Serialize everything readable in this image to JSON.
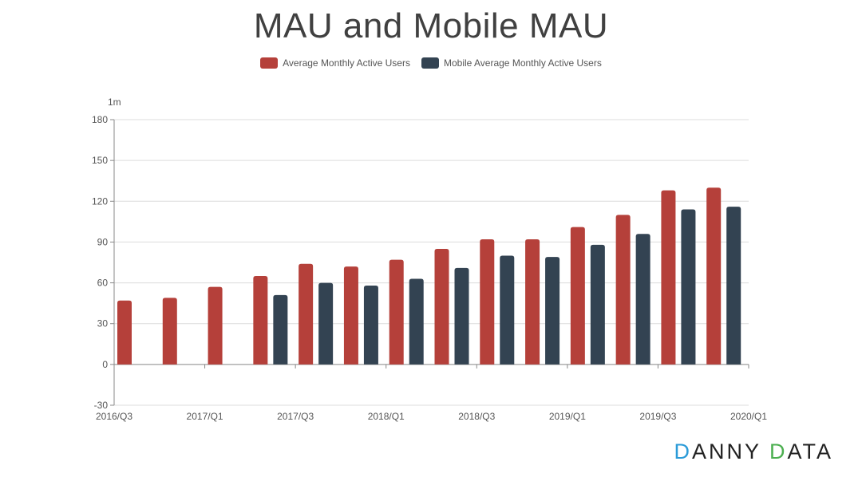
{
  "chart_data": {
    "type": "bar",
    "title": "MAU and Mobile MAU",
    "unit_label": "1m",
    "ylim": [
      -30,
      180
    ],
    "yticks": [
      -30,
      0,
      30,
      60,
      90,
      120,
      150,
      180
    ],
    "xtick_labels": [
      "2016/Q3",
      "2017/Q1",
      "2017/Q3",
      "2018/Q1",
      "2018/Q3",
      "2019/Q1",
      "2019/Q3",
      "2020/Q1"
    ],
    "categories": [
      "2016/Q3",
      "2016/Q4",
      "2017/Q1",
      "2017/Q2",
      "2017/Q3",
      "2017/Q4",
      "2018/Q1",
      "2018/Q2",
      "2018/Q3",
      "2018/Q4",
      "2019/Q1",
      "2019/Q2",
      "2019/Q3",
      "2019/Q4",
      "2020/Q1"
    ],
    "series": [
      {
        "name": "Average Monthly Active Users",
        "color": "#b5403a",
        "values": [
          47,
          49,
          57,
          65,
          74,
          72,
          77,
          85,
          92,
          92,
          101,
          110,
          128,
          130,
          null
        ]
      },
      {
        "name": "Mobile Average Monthly Active Users",
        "color": "#334352",
        "values": [
          null,
          null,
          null,
          51,
          60,
          58,
          63,
          71,
          80,
          79,
          88,
          96,
          114,
          116,
          null
        ]
      }
    ]
  },
  "brand": {
    "d1": "D",
    "rest1": "ANNY ",
    "d2": "D",
    "rest2": "ATA"
  }
}
